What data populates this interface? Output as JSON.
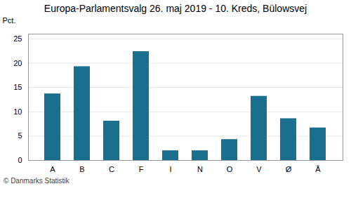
{
  "chart_data": {
    "type": "bar",
    "title": "Europa-Parlamentsvalg 26. maj 2019 - 10. Kreds, Bülowsvej",
    "categories": [
      "A",
      "B",
      "C",
      "F",
      "I",
      "N",
      "O",
      "V",
      "Ø",
      "Å"
    ],
    "values": [
      13.7,
      19.3,
      8.1,
      22.4,
      2.0,
      2.0,
      4.3,
      13.2,
      8.6,
      6.7
    ],
    "color": "#1a6e8e",
    "ylabel": "Pct.",
    "ylim": [
      0,
      26
    ],
    "yticks": [
      0,
      5,
      10,
      15,
      20,
      25
    ],
    "grid": true,
    "footer": "© Danmarks Statistik"
  }
}
